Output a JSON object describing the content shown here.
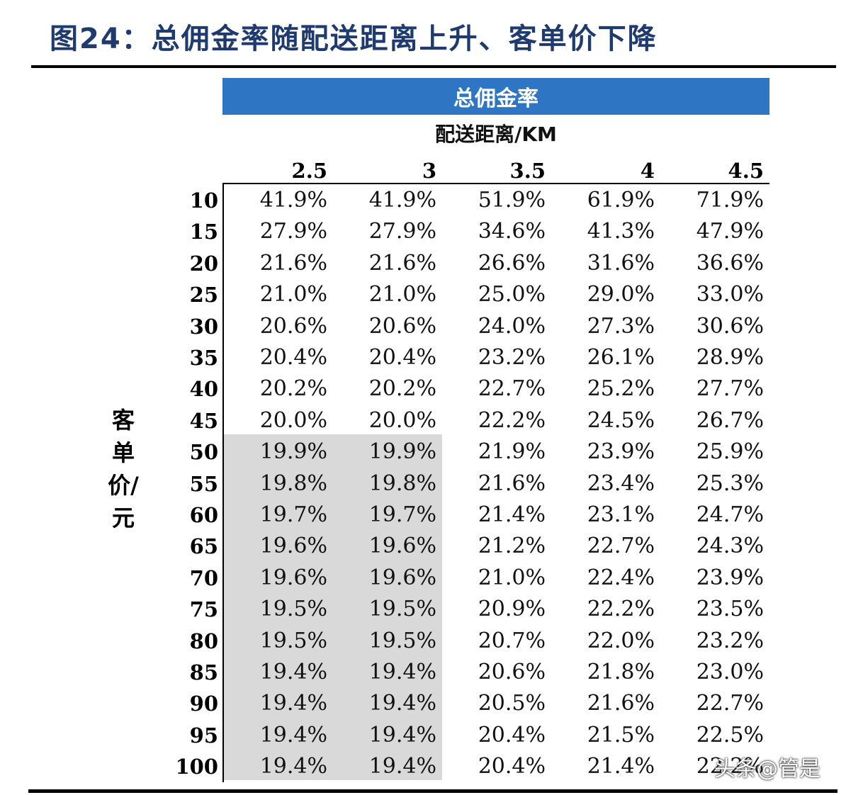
{
  "title": "图24：总佣金率随配送距离上升、客单价下降",
  "table": {
    "banner": "总佣金率",
    "x_axis_title": "配送距离/KM",
    "y_axis_title": "客单价/元",
    "columns": [
      "2.5",
      "3",
      "3.5",
      "4",
      "4.5"
    ],
    "rows": [
      {
        "label": "10",
        "values": [
          "41.9%",
          "41.9%",
          "51.9%",
          "61.9%",
          "71.9%"
        ]
      },
      {
        "label": "15",
        "values": [
          "27.9%",
          "27.9%",
          "34.6%",
          "41.3%",
          "47.9%"
        ]
      },
      {
        "label": "20",
        "values": [
          "21.6%",
          "21.6%",
          "26.6%",
          "31.6%",
          "36.6%"
        ]
      },
      {
        "label": "25",
        "values": [
          "21.0%",
          "21.0%",
          "25.0%",
          "29.0%",
          "33.0%"
        ]
      },
      {
        "label": "30",
        "values": [
          "20.6%",
          "20.6%",
          "24.0%",
          "27.3%",
          "30.6%"
        ]
      },
      {
        "label": "35",
        "values": [
          "20.4%",
          "20.4%",
          "23.2%",
          "26.1%",
          "28.9%"
        ]
      },
      {
        "label": "40",
        "values": [
          "20.2%",
          "20.2%",
          "22.7%",
          "25.2%",
          "27.7%"
        ]
      },
      {
        "label": "45",
        "values": [
          "20.0%",
          "20.0%",
          "22.2%",
          "24.5%",
          "26.7%"
        ]
      },
      {
        "label": "50",
        "values": [
          "19.9%",
          "19.9%",
          "21.9%",
          "23.9%",
          "25.9%"
        ]
      },
      {
        "label": "55",
        "values": [
          "19.8%",
          "19.8%",
          "21.6%",
          "23.4%",
          "25.3%"
        ]
      },
      {
        "label": "60",
        "values": [
          "19.7%",
          "19.7%",
          "21.4%",
          "23.1%",
          "24.7%"
        ]
      },
      {
        "label": "65",
        "values": [
          "19.6%",
          "19.6%",
          "21.2%",
          "22.7%",
          "24.3%"
        ]
      },
      {
        "label": "70",
        "values": [
          "19.6%",
          "19.6%",
          "21.0%",
          "22.4%",
          "23.9%"
        ]
      },
      {
        "label": "75",
        "values": [
          "19.5%",
          "19.5%",
          "20.9%",
          "22.2%",
          "23.5%"
        ]
      },
      {
        "label": "80",
        "values": [
          "19.5%",
          "19.5%",
          "20.7%",
          "22.0%",
          "23.2%"
        ]
      },
      {
        "label": "85",
        "values": [
          "19.4%",
          "19.4%",
          "20.6%",
          "21.8%",
          "23.0%"
        ]
      },
      {
        "label": "90",
        "values": [
          "19.4%",
          "19.4%",
          "20.5%",
          "21.6%",
          "22.7%"
        ]
      },
      {
        "label": "95",
        "values": [
          "19.4%",
          "19.4%",
          "20.4%",
          "21.5%",
          "22.5%"
        ]
      },
      {
        "label": "100",
        "values": [
          "19.4%",
          "19.4%",
          "20.4%",
          "21.4%",
          "22.2%"
        ]
      }
    ],
    "highlight_color": "#d9d9d9",
    "banner_color": "#2e75c4"
  },
  "watermark": "头条@管是"
}
